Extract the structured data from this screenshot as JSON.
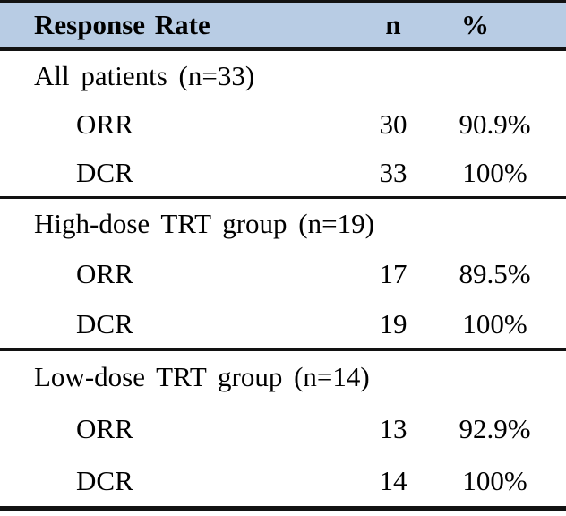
{
  "table": {
    "header": {
      "label": "Response Rate",
      "n": "n",
      "pct": "%"
    },
    "sections": [
      {
        "group_label": "All patients (n=33)",
        "rows": [
          {
            "label": "ORR",
            "n": "30",
            "pct": "90.9%"
          },
          {
            "label": "DCR",
            "n": "33",
            "pct": "100%"
          }
        ]
      },
      {
        "group_label": "High-dose TRT group (n=19)",
        "rows": [
          {
            "label": "ORR",
            "n": "17",
            "pct": "89.5%"
          },
          {
            "label": "DCR",
            "n": "19",
            "pct": "100%"
          }
        ]
      },
      {
        "group_label": "Low-dose TRT group (n=14)",
        "rows": [
          {
            "label": "ORR",
            "n": "13",
            "pct": "92.9%"
          },
          {
            "label": "DCR",
            "n": "14",
            "pct": "100%"
          }
        ]
      }
    ],
    "colors": {
      "header_bg": "#b8cce4",
      "border": "#121212",
      "text": "#000000"
    }
  }
}
